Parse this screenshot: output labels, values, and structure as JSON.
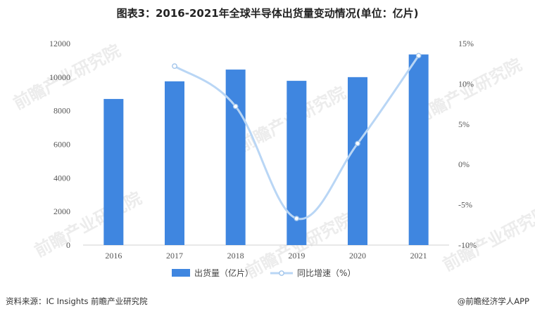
{
  "title": "图表3：2016-2021年全球半导体出货量变动情况(单位：亿片)",
  "source": "资料来源：IC Insights 前瞻产业研究院",
  "brand": "@前瞻经济学人APP",
  "watermark": "前瞻产业研究院",
  "colors": {
    "bar": "#3f86e0",
    "line": "#b9d6f5",
    "axis_text": "#555555",
    "gridline": "#d0d0d0"
  },
  "chart_data": {
    "type": "bar",
    "categories": [
      "2016",
      "2017",
      "2018",
      "2019",
      "2020",
      "2021"
    ],
    "series": [
      {
        "name": "出货量（亿片）",
        "type": "bar",
        "axis": "left",
        "values": [
          8700,
          9750,
          10450,
          9780,
          10000,
          11350
        ]
      },
      {
        "name": "同比增速（%）",
        "type": "line",
        "axis": "right",
        "values": [
          null,
          12.2,
          7.2,
          -6.7,
          2.6,
          13.5
        ]
      }
    ],
    "y_left": {
      "min": 0,
      "max": 12000,
      "ticks": [
        "0",
        "2000",
        "4000",
        "6000",
        "8000",
        "10000",
        "12000"
      ]
    },
    "y_right": {
      "min": -10,
      "max": 15,
      "ticks": [
        "-10%",
        "-5%",
        "0%",
        "5%",
        "10%",
        "15%"
      ]
    },
    "legend_position": "bottom-center",
    "grid": false
  }
}
